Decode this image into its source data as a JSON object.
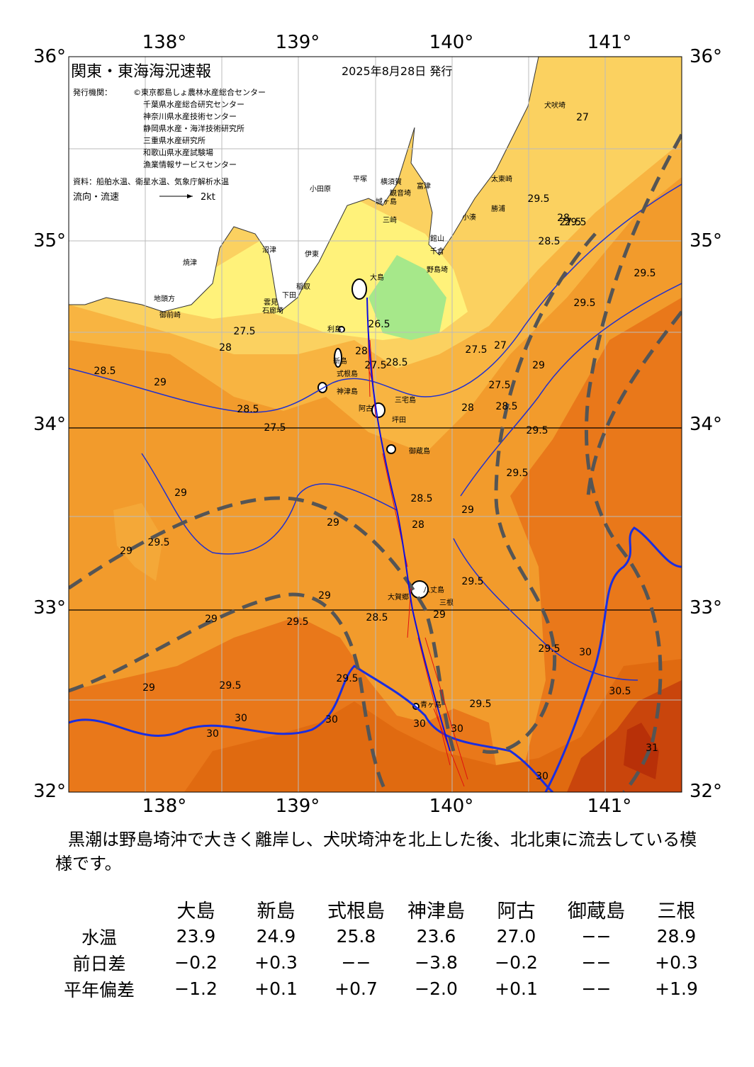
{
  "map": {
    "lon_labels": [
      "138°",
      "139°",
      "140°",
      "141°"
    ],
    "lat_labels": [
      "36°",
      "35°",
      "34°",
      "33°",
      "32°"
    ],
    "title": "関東・東海海況速報",
    "date": "2025年8月28日 発行",
    "publishers_label": "発行機関：",
    "publishers": [
      "©東京都島しょ農林水産総合センター",
      "千葉県水産総合研究センター",
      "神奈川県水産技術センター",
      "静岡県水産・海洋技術研究所",
      "三重県水産研究所",
      "和歌山県水産試験場",
      "漁業情報サービスセンター"
    ],
    "source": "資料：船舶水温、衛星水温、気象庁解析水温",
    "legend_label": "流向・流速",
    "legend_speed": "2kt",
    "places": [
      "犬吠埼",
      "太東崎",
      "勝浦",
      "小湊",
      "館山",
      "千倉",
      "野島埼",
      "富津",
      "観音埼",
      "横須賀",
      "平塚",
      "城ヶ島",
      "三崎",
      "小田原",
      "沼津",
      "伊東",
      "稲取",
      "下田",
      "雲見",
      "石廊埼",
      "焼津",
      "地頭方",
      "御前崎",
      "大島",
      "利島",
      "新島",
      "式根島",
      "神津島",
      "三宅島",
      "阿古",
      "坪田",
      "御蔵島",
      "八丈島",
      "三根",
      "大賀郷",
      "青ヶ島"
    ],
    "contour_labels": [
      "27",
      "27.5",
      "28",
      "28.5",
      "27.5",
      "28",
      "28.5",
      "29",
      "28.5",
      "27.5",
      "28.5",
      "27.5",
      "27",
      "27.5",
      "28",
      "26.5",
      "27.5",
      "28",
      "28.5",
      "28",
      "29",
      "29.5",
      "29.5",
      "28.5",
      "29",
      "29.5",
      "29.5",
      "29",
      "29.5",
      "29",
      "28.5",
      "29",
      "29",
      "29.5",
      "29",
      "29.5",
      "29",
      "29.5",
      "29.5",
      "29",
      "29.5",
      "30",
      "30.5",
      "31",
      "30",
      "30",
      "30",
      "30",
      "30",
      "30",
      "29.5",
      "29.5",
      "29.5"
    ]
  },
  "description": "黒潮は野島埼沖で大きく離岸し、犬吠埼沖を北上した後、北北東に流去している模様です。",
  "table": {
    "columns": [
      "大島",
      "新島",
      "式根島",
      "神津島",
      "阿古",
      "御蔵島",
      "三根"
    ],
    "rows": [
      {
        "label": "水温",
        "values": [
          "23.9",
          "24.9",
          "25.8",
          "23.6",
          "27.0",
          "−−",
          "28.9"
        ]
      },
      {
        "label": "前日差",
        "values": [
          "−0.2",
          "+0.3",
          "−−",
          "−3.8",
          "−0.2",
          "−−",
          "+0.3"
        ]
      },
      {
        "label": "平年偏差",
        "values": [
          "−1.2",
          "+0.1",
          "+0.7",
          "−2.0",
          "+0.1",
          "−−",
          "+1.9"
        ]
      }
    ]
  }
}
